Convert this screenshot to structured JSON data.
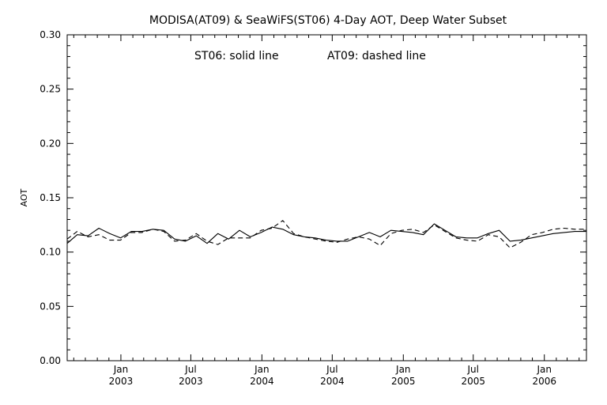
{
  "chart_data": {
    "type": "line",
    "title": "MODISA(AT09) & SeaWiFS(ST06) 4-Day AOT, Deep Water Subset",
    "annotation_left": "ST06: solid line",
    "annotation_right": "AT09: dashed line",
    "ylabel": "AOT",
    "xlabel": "",
    "ylim": [
      0.0,
      0.3
    ],
    "xlim": [
      "2002-08-15",
      "2006-04-20"
    ],
    "y_ticks": [
      "0.00",
      "0.05",
      "0.10",
      "0.15",
      "0.20",
      "0.25",
      "0.30"
    ],
    "x_ticks": [
      {
        "date": "2003-01-01",
        "month": "Jan",
        "year": "2003"
      },
      {
        "date": "2003-07-01",
        "month": "Jul",
        "year": "2003"
      },
      {
        "date": "2004-01-01",
        "month": "Jan",
        "year": "2004"
      },
      {
        "date": "2004-07-01",
        "month": "Jul",
        "year": "2004"
      },
      {
        "date": "2005-01-01",
        "month": "Jan",
        "year": "2005"
      },
      {
        "date": "2005-07-01",
        "month": "Jul",
        "year": "2005"
      },
      {
        "date": "2006-01-01",
        "month": "Jan",
        "year": "2006"
      }
    ],
    "grid": false,
    "series": [
      {
        "line_style": "solid",
        "x": [
          "2002-08-15",
          "2002-09-10",
          "2002-10-08",
          "2002-11-05",
          "2002-12-03",
          "2002-12-31",
          "2003-01-28",
          "2003-02-25",
          "2003-03-25",
          "2003-04-22",
          "2003-05-20",
          "2003-06-17",
          "2003-07-15",
          "2003-08-12",
          "2003-09-09",
          "2003-10-07",
          "2003-11-04",
          "2003-12-02",
          "2003-12-30",
          "2004-01-27",
          "2004-02-24",
          "2004-03-23",
          "2004-04-20",
          "2004-05-18",
          "2004-06-15",
          "2004-07-13",
          "2004-08-10",
          "2004-09-07",
          "2004-10-05",
          "2004-11-02",
          "2004-11-30",
          "2004-12-28",
          "2005-01-25",
          "2005-02-22",
          "2005-03-22",
          "2005-04-19",
          "2005-05-17",
          "2005-06-14",
          "2005-07-12",
          "2005-08-09",
          "2005-09-06",
          "2005-10-04",
          "2005-11-01",
          "2005-11-29",
          "2005-12-27",
          "2006-01-24",
          "2006-02-21",
          "2006-03-21",
          "2006-04-20"
        ],
        "y": [
          0.108,
          0.116,
          0.115,
          0.122,
          0.117,
          0.113,
          0.119,
          0.119,
          0.121,
          0.12,
          0.112,
          0.11,
          0.115,
          0.108,
          0.117,
          0.112,
          0.12,
          0.114,
          0.118,
          0.123,
          0.121,
          0.116,
          0.114,
          0.113,
          0.111,
          0.11,
          0.11,
          0.114,
          0.118,
          0.114,
          0.12,
          0.119,
          0.118,
          0.116,
          0.126,
          0.12,
          0.114,
          0.113,
          0.113,
          0.117,
          0.12,
          0.11,
          0.111,
          0.113,
          0.115,
          0.117,
          0.118,
          0.119,
          0.119
        ]
      },
      {
        "line_style": "dashed",
        "x": [
          "2002-08-15",
          "2002-09-10",
          "2002-10-08",
          "2002-11-05",
          "2002-12-03",
          "2002-12-31",
          "2003-01-28",
          "2003-02-25",
          "2003-03-25",
          "2003-04-22",
          "2003-05-20",
          "2003-06-17",
          "2003-07-15",
          "2003-08-12",
          "2003-09-09",
          "2003-10-07",
          "2003-11-04",
          "2003-12-02",
          "2003-12-30",
          "2004-01-27",
          "2004-02-24",
          "2004-03-23",
          "2004-04-20",
          "2004-05-18",
          "2004-06-15",
          "2004-07-13",
          "2004-08-10",
          "2004-09-07",
          "2004-10-05",
          "2004-11-02",
          "2004-11-30",
          "2004-12-28",
          "2005-01-25",
          "2005-02-22",
          "2005-03-22",
          "2005-04-19",
          "2005-05-17",
          "2005-06-14",
          "2005-07-12",
          "2005-08-09",
          "2005-09-06",
          "2005-10-04",
          "2005-11-01",
          "2005-11-29",
          "2005-12-27",
          "2006-01-24",
          "2006-02-21",
          "2006-03-21",
          "2006-04-20"
        ],
        "y": [
          0.112,
          0.119,
          0.114,
          0.116,
          0.111,
          0.111,
          0.118,
          0.118,
          0.121,
          0.119,
          0.11,
          0.111,
          0.117,
          0.11,
          0.107,
          0.113,
          0.113,
          0.113,
          0.12,
          0.122,
          0.129,
          0.117,
          0.114,
          0.112,
          0.11,
          0.109,
          0.112,
          0.114,
          0.112,
          0.106,
          0.117,
          0.12,
          0.121,
          0.118,
          0.125,
          0.119,
          0.113,
          0.111,
          0.11,
          0.116,
          0.114,
          0.104,
          0.109,
          0.116,
          0.118,
          0.121,
          0.122,
          0.121,
          0.121
        ]
      }
    ]
  }
}
